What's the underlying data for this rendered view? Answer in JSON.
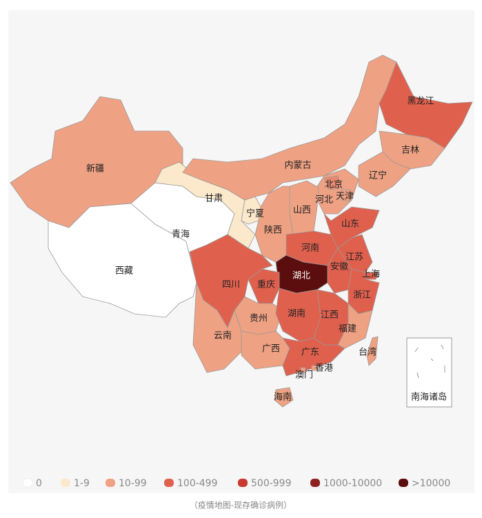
{
  "map": {
    "regions": [
      {
        "name": "新疆",
        "color": "#efa183"
      },
      {
        "name": "西藏",
        "color": "#ffffff"
      },
      {
        "name": "青海",
        "color": "#ffffff"
      },
      {
        "name": "甘肃",
        "color": "#fce8cb"
      },
      {
        "name": "宁夏",
        "color": "#fce8cb"
      },
      {
        "name": "内蒙古",
        "color": "#efa183"
      },
      {
        "name": "黑龙江",
        "color": "#e0604e"
      },
      {
        "name": "吉林",
        "color": "#efa183"
      },
      {
        "name": "辽宁",
        "color": "#efa183"
      },
      {
        "name": "河北",
        "color": "#efa183"
      },
      {
        "name": "北京",
        "color": "#e98a70"
      },
      {
        "name": "天津",
        "color": "#efa183"
      },
      {
        "name": "山西",
        "color": "#efa183"
      },
      {
        "name": "陕西",
        "color": "#efa183"
      },
      {
        "name": "河南",
        "color": "#e0604e"
      },
      {
        "name": "山东",
        "color": "#e0604e"
      },
      {
        "name": "江苏",
        "color": "#e0604e"
      },
      {
        "name": "安徽",
        "color": "#e0604e"
      },
      {
        "name": "上海",
        "color": "#e0604e"
      },
      {
        "name": "浙江",
        "color": "#e0604e"
      },
      {
        "name": "湖北",
        "color": "#5c0d0d"
      },
      {
        "name": "重庆",
        "color": "#e0604e"
      },
      {
        "name": "四川",
        "color": "#e0604e"
      },
      {
        "name": "贵州",
        "color": "#efa183"
      },
      {
        "name": "湖南",
        "color": "#e0604e"
      },
      {
        "name": "江西",
        "color": "#e0604e"
      },
      {
        "name": "福建",
        "color": "#efa183"
      },
      {
        "name": "云南",
        "color": "#efa183"
      },
      {
        "name": "广西",
        "color": "#efa183"
      },
      {
        "name": "广东",
        "color": "#e0604e"
      },
      {
        "name": "台湾",
        "color": "#efa183"
      },
      {
        "name": "海南",
        "color": "#efa183"
      },
      {
        "name": "香港",
        "color": "#efa183"
      },
      {
        "name": "澳门",
        "color": "#efa183"
      }
    ],
    "inset_label": "南海诸岛",
    "legend": [
      {
        "label": "0",
        "color": "#ffffff"
      },
      {
        "label": "1-9",
        "color": "#fce8cb"
      },
      {
        "label": "10-99",
        "color": "#efa183"
      },
      {
        "label": "100-499",
        "color": "#e0604e"
      },
      {
        "label": "500-999",
        "color": "#c8392f"
      },
      {
        "label": "1000-10000",
        "color": "#8f2020"
      },
      {
        "label": ">10000",
        "color": "#5c0d0d"
      }
    ],
    "caption": "（疫情地图-现存确诊病例）"
  }
}
